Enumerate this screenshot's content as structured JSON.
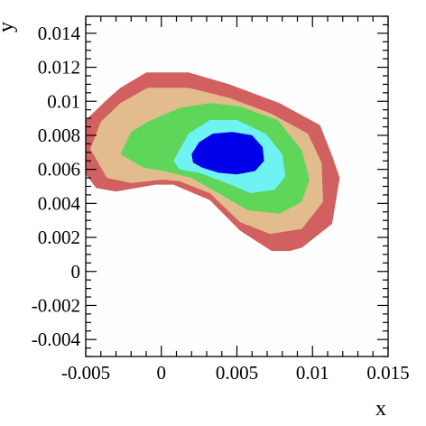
{
  "chart_data": {
    "type": "contour",
    "title": "",
    "xlabel": "x",
    "ylabel": "y",
    "xlim": [
      -0.005,
      0.015
    ],
    "ylim": [
      -0.005,
      0.015
    ],
    "x_ticks": [
      -0.005,
      0,
      0.005,
      0.01,
      0.015
    ],
    "x_tick_labels": [
      "-0.005",
      "0",
      "0.005",
      "0.01",
      "0.015"
    ],
    "y_ticks": [
      -0.004,
      -0.002,
      0,
      0.002,
      0.004,
      0.006,
      0.008,
      0.01,
      0.012,
      0.014
    ],
    "y_tick_labels": [
      "-0.004",
      "-0.002",
      "0",
      "0.002",
      "0.004",
      "0.006",
      "0.008",
      "0.01",
      "0.012",
      "0.014"
    ],
    "grid": false,
    "legend": "none",
    "contour_levels": [
      {
        "color": "#d26060",
        "polygon": [
          [
            -0.005,
            0.0089
          ],
          [
            -0.0036,
            0.0101
          ],
          [
            -0.0027,
            0.0108
          ],
          [
            -0.001,
            0.0117
          ],
          [
            0.0018,
            0.0117
          ],
          [
            0.0045,
            0.011
          ],
          [
            0.0078,
            0.0099
          ],
          [
            0.0105,
            0.0086
          ],
          [
            0.0113,
            0.0068
          ],
          [
            0.0118,
            0.0055
          ],
          [
            0.0113,
            0.0028
          ],
          [
            0.0093,
            0.0014
          ],
          [
            0.0085,
            0.0012
          ],
          [
            0.0073,
            0.0012
          ],
          [
            0.0052,
            0.0024
          ],
          [
            0.0032,
            0.0042
          ],
          [
            0.0008,
            0.0051
          ],
          [
            -0.0004,
            0.0051
          ],
          [
            -0.003,
            0.0047
          ],
          [
            -0.0043,
            0.0049
          ],
          [
            -0.005,
            0.0057
          ]
        ]
      },
      {
        "color": "#e2bc8c",
        "polygon": [
          [
            -0.0047,
            0.0072
          ],
          [
            -0.004,
            0.0088
          ],
          [
            -0.0027,
            0.0099
          ],
          [
            -0.0009,
            0.0108
          ],
          [
            0.0018,
            0.0108
          ],
          [
            0.0045,
            0.0102
          ],
          [
            0.0072,
            0.0093
          ],
          [
            0.0097,
            0.0081
          ],
          [
            0.0106,
            0.0064
          ],
          [
            0.0107,
            0.0041
          ],
          [
            0.0093,
            0.0025
          ],
          [
            0.0072,
            0.0022
          ],
          [
            0.0052,
            0.0029
          ],
          [
            0.0032,
            0.0046
          ],
          [
            0.0012,
            0.0053
          ],
          [
            0.0001,
            0.0054
          ],
          [
            -0.002,
            0.0052
          ],
          [
            -0.0036,
            0.0055
          ]
        ]
      },
      {
        "color": "#5ed65a",
        "polygon": [
          [
            -0.0027,
            0.0069
          ],
          [
            -0.002,
            0.0082
          ],
          [
            -0.0009,
            0.0088
          ],
          [
            0.0012,
            0.0096
          ],
          [
            0.0032,
            0.0099
          ],
          [
            0.0052,
            0.0097
          ],
          [
            0.0077,
            0.0089
          ],
          [
            0.0093,
            0.0071
          ],
          [
            0.0098,
            0.0054
          ],
          [
            0.0093,
            0.0041
          ],
          [
            0.0078,
            0.0034
          ],
          [
            0.0057,
            0.0036
          ],
          [
            0.0038,
            0.0046
          ],
          [
            0.002,
            0.0055
          ],
          [
            0.0002,
            0.0059
          ],
          [
            -0.0012,
            0.0061
          ]
        ]
      },
      {
        "color": "#6ef2f2",
        "polygon": [
          [
            0.0008,
            0.0065
          ],
          [
            0.0018,
            0.0081
          ],
          [
            0.0032,
            0.0089
          ],
          [
            0.005,
            0.0089
          ],
          [
            0.0069,
            0.0081
          ],
          [
            0.008,
            0.0069
          ],
          [
            0.0082,
            0.0056
          ],
          [
            0.0075,
            0.0048
          ],
          [
            0.0059,
            0.0046
          ],
          [
            0.0043,
            0.0052
          ],
          [
            0.0025,
            0.0058
          ],
          [
            0.0012,
            0.006
          ]
        ]
      },
      {
        "color": "#0000e8",
        "polygon": [
          [
            0.002,
            0.0069
          ],
          [
            0.0025,
            0.0076
          ],
          [
            0.0034,
            0.0081
          ],
          [
            0.0047,
            0.0082
          ],
          [
            0.006,
            0.008
          ],
          [
            0.0067,
            0.0073
          ],
          [
            0.0068,
            0.0065
          ],
          [
            0.0062,
            0.0059
          ],
          [
            0.005,
            0.0057
          ],
          [
            0.0038,
            0.0058
          ],
          [
            0.0027,
            0.0061
          ],
          [
            0.0021,
            0.0064
          ]
        ]
      }
    ]
  }
}
